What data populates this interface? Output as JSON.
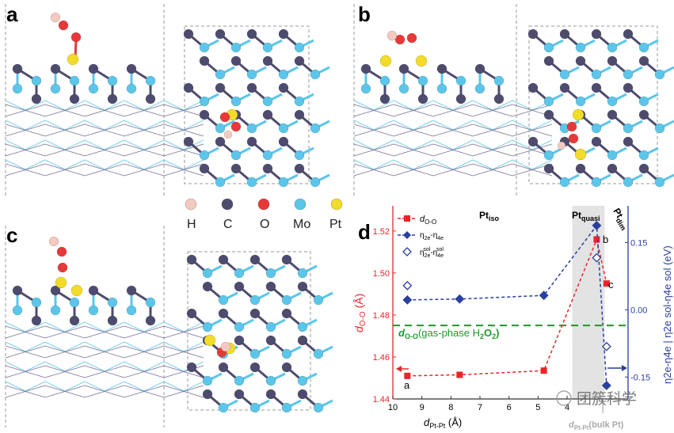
{
  "panels": {
    "a": "a",
    "b": "b",
    "c": "c",
    "d": "d"
  },
  "element_legend": [
    {
      "symbol": "H",
      "color": "#f3c9c0"
    },
    {
      "symbol": "C",
      "color": "#4e4c6e"
    },
    {
      "symbol": "O",
      "color": "#e8393a"
    },
    {
      "symbol": "Mo",
      "color": "#5cc6ea"
    },
    {
      "symbol": "Pt",
      "color": "#f2dc2a"
    }
  ],
  "chart_data": {
    "type": "scatter",
    "xlabel": {
      "main": "d",
      "sub": "Pt-Pt",
      "unit": " (Å)"
    },
    "ylabel_left": {
      "main": "d",
      "sub": "O-O",
      "unit": " (Å)"
    },
    "ylabel_right": "η2e-η4e | η2e sol-η4e sol (eV)",
    "xlim": [
      10,
      1.9
    ],
    "ylim_left": [
      1.44,
      1.532
    ],
    "ylim_right": [
      -0.199,
      0.232
    ],
    "x_ticks": [
      "10",
      "9",
      "8",
      "7",
      "6",
      "5",
      "4"
    ],
    "y_left_ticks": [
      "1.44",
      "1.46",
      "1.48",
      "1.50",
      "1.52"
    ],
    "y_right_ticks": [
      "-0.15",
      "0.00",
      "0.15"
    ],
    "colors": {
      "left": "#e8262a",
      "right": "#2a3f9e",
      "ref": "#1a9a2a",
      "band": "#e3e3e3"
    },
    "series": [
      {
        "name": "d O-O",
        "axis": "left",
        "marker": "square",
        "x": [
          9.5,
          7.7,
          4.8,
          2.98,
          2.64
        ],
        "y": [
          1.451,
          1.4515,
          1.4535,
          1.516,
          1.495
        ]
      },
      {
        "name": "η2e-η4e",
        "axis": "right",
        "marker": "diamond",
        "x": [
          9.5,
          7.7,
          4.8,
          2.98,
          2.64
        ],
        "y": [
          0.022,
          0.024,
          0.032,
          0.188,
          -0.169
        ]
      },
      {
        "name": "η2e sol-η4e sol",
        "axis": "right",
        "marker": "open-diamond",
        "x": [
          9.5,
          2.98,
          2.64
        ],
        "y": [
          0.054,
          0.116,
          -0.082
        ]
      }
    ],
    "reference_line": {
      "y": 1.475,
      "label": "(gas-phase H",
      "label_d": "d",
      "label_sub": "O-O",
      "label_end": "O",
      "label_sub2": "2"
    },
    "shaded_region": [
      3.82,
      2.71
    ],
    "bulk_line_x": 2.77,
    "bulk_label": {
      "main": "d",
      "sub": "Pt-Pt",
      "rest": "(bulk Pt)"
    },
    "region_labels": {
      "iso": "Pt",
      "iso_sub": "iso",
      "quasi": "Pt",
      "quasi_sub": "quasi",
      "dim": "Pt",
      "dim_sub": "dim"
    },
    "point_labels": [
      "a",
      "b",
      "c"
    ],
    "legend": [
      {
        "main": "d",
        "sub": "O-O"
      },
      {
        "main": "η",
        "sub": "2e",
        "mid": "-η",
        "sub2": "4e"
      },
      {
        "main": "η",
        "sup": "sol",
        "sub": "2e",
        "mid": "-η",
        "sup2": "sol",
        "sub2": "4e"
      }
    ]
  },
  "watermark": "团簇科学"
}
